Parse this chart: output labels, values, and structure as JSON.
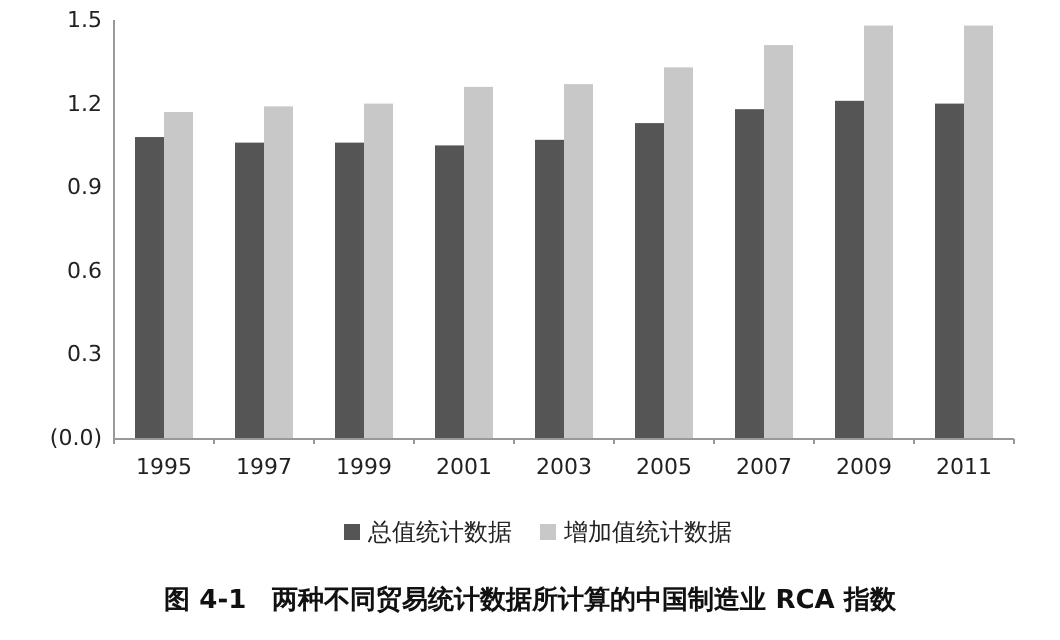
{
  "chart_data": {
    "type": "bar",
    "title": "图 4-1　两种不同贸易统计数据所计算的中国制造业 RCA 指数",
    "categories": [
      "1995",
      "1997",
      "1999",
      "2001",
      "2003",
      "2005",
      "2007",
      "2009",
      "2011"
    ],
    "series": [
      {
        "name": "总值统计数据",
        "color": "#555555",
        "values": [
          1.08,
          1.06,
          1.06,
          1.05,
          1.07,
          1.13,
          1.18,
          1.21,
          1.2
        ]
      },
      {
        "name": "增加值统计数据",
        "color": "#c8c8c8",
        "values": [
          1.17,
          1.19,
          1.2,
          1.26,
          1.27,
          1.33,
          1.41,
          1.48,
          1.48
        ]
      }
    ],
    "ylim": [
      0,
      1.5
    ],
    "yticks": [
      {
        "value": 0,
        "label": "(0.0)"
      },
      {
        "value": 0.3,
        "label": "0.3"
      },
      {
        "value": 0.6,
        "label": "0.6"
      },
      {
        "value": 0.9,
        "label": "0.9"
      },
      {
        "value": 1.2,
        "label": "1.2"
      },
      {
        "value": 1.5,
        "label": "1.5"
      }
    ],
    "grid": false,
    "legend": "bottom"
  }
}
